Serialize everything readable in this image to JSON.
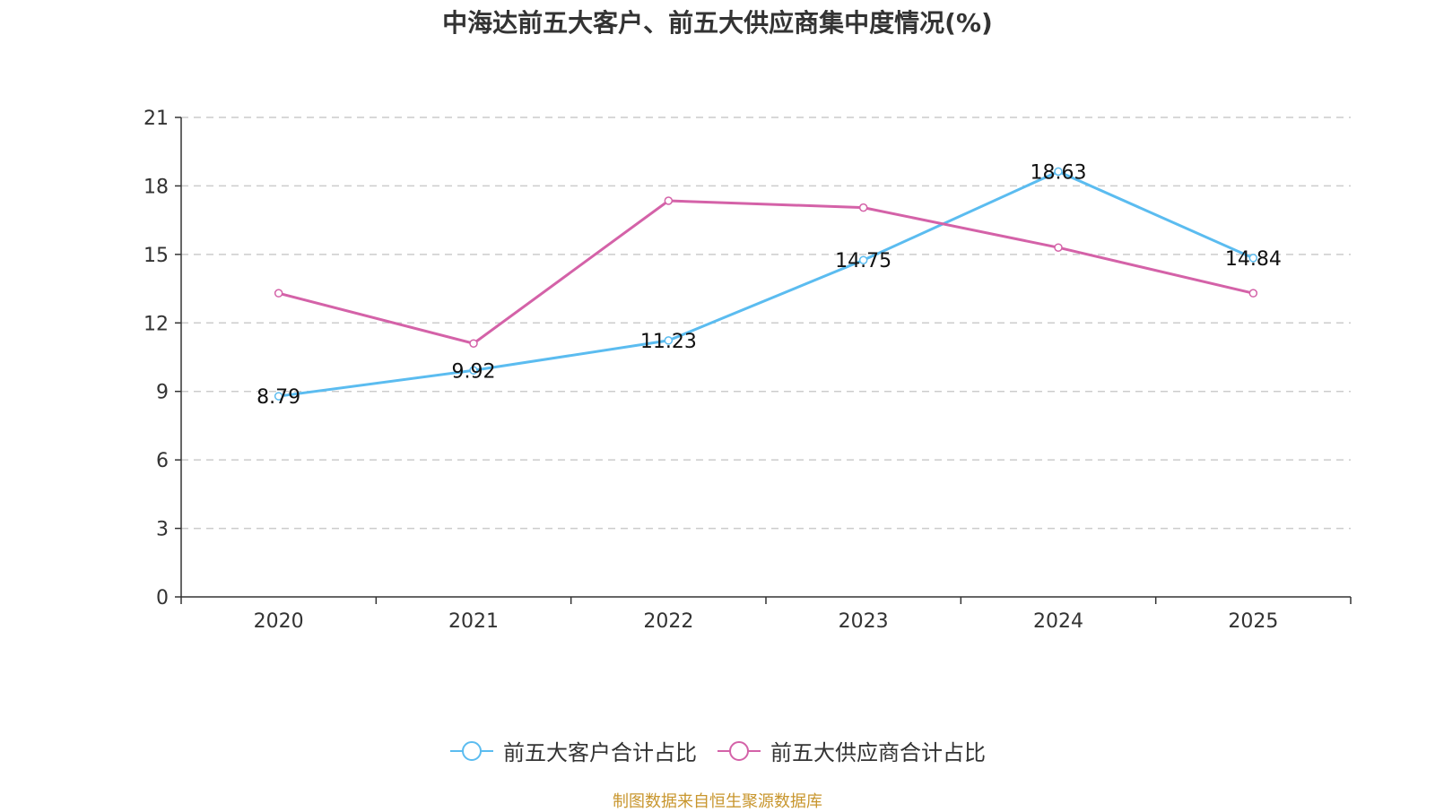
{
  "chart_data": {
    "type": "line",
    "title": "中海达前五大客户、前五大供应商集中度情况(%)",
    "xlabel": "",
    "ylabel": "",
    "categories": [
      "2020",
      "2021",
      "2022",
      "2023",
      "2024",
      "2025"
    ],
    "ylim": [
      0,
      21
    ],
    "yticks": [
      0,
      3,
      6,
      9,
      12,
      15,
      18,
      21
    ],
    "grid": true,
    "legend_position": "bottom",
    "series": [
      {
        "name": "前五大客户合计占比",
        "color": "#5bbcf0",
        "values": [
          8.79,
          9.92,
          11.23,
          14.75,
          18.63,
          14.84
        ],
        "labels": [
          "8.79",
          "9.92",
          "11.23",
          "14.75",
          "18.63",
          "14.84"
        ],
        "show_labels": true
      },
      {
        "name": "前五大供应商合计占比",
        "color": "#d462a8",
        "values": [
          13.3,
          11.1,
          17.35,
          17.05,
          15.3,
          13.3
        ],
        "show_labels": false
      }
    ],
    "source": "制图数据来自恒生聚源数据库"
  }
}
